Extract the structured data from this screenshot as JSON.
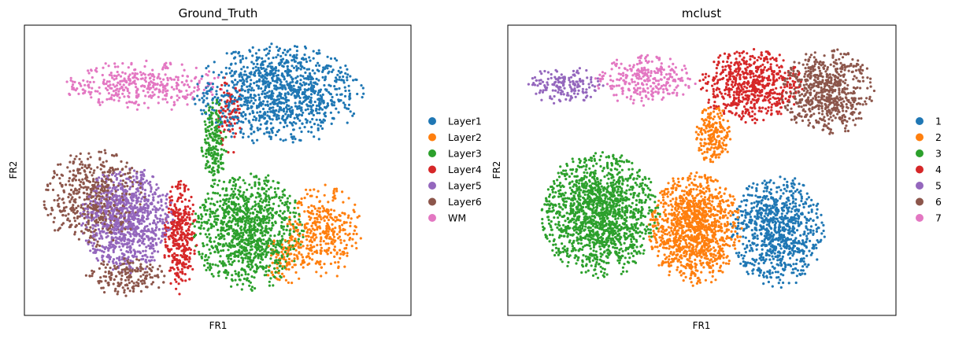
{
  "chart_data": [
    {
      "type": "scatter",
      "title": "Ground_Truth",
      "xlabel": "FR1",
      "ylabel": "FR2",
      "xlim": [
        0,
        100
      ],
      "ylim": [
        0,
        100
      ],
      "grid": false,
      "legend_position": "right",
      "series": [
        {
          "name": "Layer1",
          "color": "#1f77b4",
          "n": 1100,
          "blobs": [
            {
              "cx": 66,
              "cy": 77,
              "rx": 20,
              "ry": 16,
              "w": 1
            }
          ]
        },
        {
          "name": "Layer2",
          "color": "#ff7f0e",
          "n": 440,
          "blobs": [
            {
              "cx": 78,
              "cy": 28,
              "rx": 9,
              "ry": 15,
              "w": 0.8
            },
            {
              "cx": 68,
              "cy": 18,
              "rx": 6,
              "ry": 8,
              "w": 0.2
            }
          ]
        },
        {
          "name": "Layer3",
          "color": "#2ca02c",
          "n": 1250,
          "blobs": [
            {
              "cx": 58,
              "cy": 28,
              "rx": 13,
              "ry": 19,
              "w": 0.85
            },
            {
              "cx": 49,
              "cy": 60,
              "rx": 3,
              "ry": 14,
              "w": 0.15
            }
          ]
        },
        {
          "name": "Layer4",
          "color": "#d62728",
          "n": 420,
          "blobs": [
            {
              "cx": 40,
              "cy": 26,
              "rx": 4,
              "ry": 18,
              "w": 0.8
            },
            {
              "cx": 53,
              "cy": 70,
              "rx": 3,
              "ry": 13,
              "w": 0.2
            }
          ]
        },
        {
          "name": "Layer5",
          "color": "#9467bd",
          "n": 950,
          "blobs": [
            {
              "cx": 26,
              "cy": 32,
              "rx": 11,
              "ry": 17,
              "w": 1
            }
          ]
        },
        {
          "name": "Layer6",
          "color": "#8c564b",
          "n": 700,
          "blobs": [
            {
              "cx": 17,
              "cy": 40,
              "rx": 12,
              "ry": 16,
              "w": 0.75
            },
            {
              "cx": 26,
              "cy": 12,
              "rx": 10,
              "ry": 6,
              "w": 0.25
            }
          ]
        },
        {
          "name": "WM",
          "color": "#e377c2",
          "n": 370,
          "blobs": [
            {
              "cx": 30,
              "cy": 80,
              "rx": 19,
              "ry": 8,
              "w": 1
            }
          ]
        }
      ]
    },
    {
      "type": "scatter",
      "title": "mclust",
      "xlabel": "FR1",
      "ylabel": "FR2",
      "xlim": [
        0,
        100
      ],
      "ylim": [
        0,
        100
      ],
      "grid": false,
      "legend_position": "right",
      "series": [
        {
          "name": "1",
          "color": "#1f77b4",
          "n": 850,
          "blobs": [
            {
              "cx": 70,
              "cy": 28,
              "rx": 11,
              "ry": 18,
              "w": 1
            }
          ]
        },
        {
          "name": "2",
          "color": "#ff7f0e",
          "n": 1350,
          "blobs": [
            {
              "cx": 48,
              "cy": 29,
              "rx": 11,
              "ry": 18,
              "w": 0.85
            },
            {
              "cx": 53,
              "cy": 62,
              "rx": 4,
              "ry": 10,
              "w": 0.15
            }
          ]
        },
        {
          "name": "3",
          "color": "#2ca02c",
          "n": 1450,
          "blobs": [
            {
              "cx": 23,
              "cy": 34,
              "rx": 14,
              "ry": 20,
              "w": 1
            }
          ]
        },
        {
          "name": "4",
          "color": "#d62728",
          "n": 620,
          "blobs": [
            {
              "cx": 63,
              "cy": 80,
              "rx": 12,
              "ry": 12,
              "w": 1
            }
          ]
        },
        {
          "name": "5",
          "color": "#9467bd",
          "n": 170,
          "blobs": [
            {
              "cx": 14,
              "cy": 80,
              "rx": 9,
              "ry": 6,
              "w": 1
            }
          ]
        },
        {
          "name": "6",
          "color": "#8c564b",
          "n": 650,
          "blobs": [
            {
              "cx": 83,
              "cy": 78,
              "rx": 11,
              "ry": 14,
              "w": 1
            }
          ]
        },
        {
          "name": "7",
          "color": "#e377c2",
          "n": 280,
          "blobs": [
            {
              "cx": 35,
              "cy": 82,
              "rx": 12,
              "ry": 8,
              "w": 1
            }
          ]
        }
      ]
    }
  ]
}
